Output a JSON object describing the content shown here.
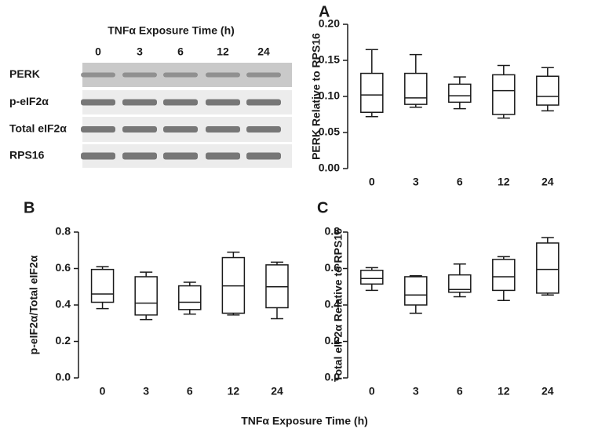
{
  "blot": {
    "title": "TNFα Exposure Time (h)",
    "lanes": [
      "0",
      "3",
      "6",
      "12",
      "24"
    ],
    "rows": [
      "PERK",
      "p-eIF2α",
      "Total eIF2α",
      "RPS16"
    ]
  },
  "chart_data": [
    {
      "type": "box",
      "panel": "A",
      "y_label": "PERK Relative to RPS16",
      "categories": [
        "0",
        "3",
        "6",
        "12",
        "24"
      ],
      "stats": {
        "max": [
          0.165,
          0.158,
          0.127,
          0.143,
          0.14
        ],
        "q3": [
          0.132,
          0.132,
          0.117,
          0.13,
          0.128
        ],
        "median": [
          0.102,
          0.098,
          0.101,
          0.108,
          0.1
        ],
        "q1": [
          0.078,
          0.089,
          0.092,
          0.075,
          0.088
        ],
        "min": [
          0.072,
          0.085,
          0.083,
          0.07,
          0.08
        ]
      },
      "ylim": [
        0,
        0.2
      ],
      "yticks": [
        {
          "value": 0,
          "label": "0.00"
        },
        0.05,
        {
          "value": 0.1,
          "label": "0.10"
        },
        0.15,
        {
          "value": 0.2,
          "label": "0.20"
        }
      ]
    },
    {
      "type": "box",
      "panel": "B",
      "y_label": "p-eIF2α/Total eIF2α",
      "categories": [
        "0",
        "3",
        "6",
        "12",
        "24"
      ],
      "stats": {
        "max": [
          0.61,
          0.58,
          0.525,
          0.69,
          0.635
        ],
        "q3": [
          0.595,
          0.555,
          0.505,
          0.66,
          0.62
        ],
        "median": [
          0.46,
          0.41,
          0.415,
          0.505,
          0.5
        ],
        "q1": [
          0.415,
          0.345,
          0.375,
          0.355,
          0.385
        ],
        "min": [
          0.38,
          0.32,
          0.35,
          0.345,
          0.325
        ]
      },
      "ylim": [
        0,
        0.8
      ],
      "yticks": [
        {
          "value": 0,
          "label": "0.0"
        },
        0.2,
        0.4,
        0.6,
        0.8
      ]
    },
    {
      "type": "box",
      "panel": "C",
      "y_label": "Total eIF2α Relative to RPS16",
      "categories": [
        "0",
        "3",
        "6",
        "12",
        "24"
      ],
      "stats": {
        "max": [
          0.605,
          0.56,
          0.625,
          0.665,
          0.77
        ],
        "q3": [
          0.59,
          0.555,
          0.565,
          0.65,
          0.74
        ],
        "median": [
          0.545,
          0.455,
          0.485,
          0.555,
          0.595
        ],
        "q1": [
          0.515,
          0.4,
          0.47,
          0.48,
          0.465
        ],
        "min": [
          0.48,
          0.355,
          0.445,
          0.425,
          0.455
        ]
      },
      "ylim": [
        0,
        0.8
      ],
      "yticks": [
        {
          "value": 0,
          "label": "0.0"
        },
        0.2,
        0.4,
        0.6,
        0.8
      ]
    }
  ],
  "x_label": "TNFα Exposure Time (h)"
}
